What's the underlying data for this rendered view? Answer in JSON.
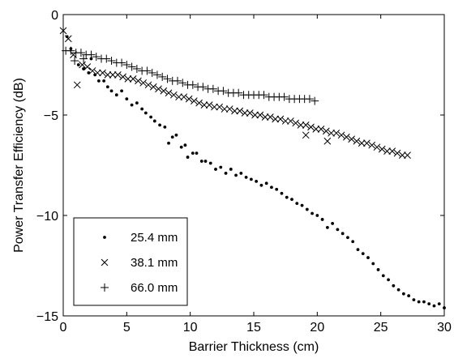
{
  "chart_data": {
    "type": "scatter",
    "title": "",
    "xlabel": "Barrier Thickness (cm)",
    "ylabel": "Power Transfer Efficiency (dB)",
    "xlim": [
      0,
      30
    ],
    "ylim": [
      -15,
      0
    ],
    "xticks": [
      0,
      5,
      10,
      15,
      20,
      25,
      30
    ],
    "yticks": [
      0,
      -5,
      -10,
      -15
    ],
    "grid": false,
    "legend_position": "bottom-left",
    "series": [
      {
        "name": "25.4 mm",
        "marker": "dot",
        "color": "#000000",
        "points": [
          [
            0.3,
            -1.1
          ],
          [
            0.6,
            -1.7
          ],
          [
            1.2,
            -2.5
          ],
          [
            1.6,
            -2.7
          ],
          [
            2.0,
            -2.9
          ],
          [
            2.2,
            -2.2
          ],
          [
            2.5,
            -3.0
          ],
          [
            2.8,
            -3.3
          ],
          [
            3.2,
            -3.3
          ],
          [
            3.5,
            -3.6
          ],
          [
            3.8,
            -3.8
          ],
          [
            4.2,
            -4.0
          ],
          [
            4.6,
            -3.8
          ],
          [
            5.0,
            -4.2
          ],
          [
            5.4,
            -4.5
          ],
          [
            5.8,
            -4.4
          ],
          [
            6.2,
            -4.7
          ],
          [
            6.5,
            -4.9
          ],
          [
            6.9,
            -5.1
          ],
          [
            7.2,
            -5.3
          ],
          [
            7.6,
            -5.5
          ],
          [
            8.0,
            -5.6
          ],
          [
            8.3,
            -6.4
          ],
          [
            8.6,
            -6.1
          ],
          [
            8.9,
            -6.0
          ],
          [
            9.3,
            -6.6
          ],
          [
            9.6,
            -6.5
          ],
          [
            9.8,
            -7.1
          ],
          [
            10.2,
            -6.9
          ],
          [
            10.5,
            -6.9
          ],
          [
            10.9,
            -7.3
          ],
          [
            11.2,
            -7.3
          ],
          [
            11.6,
            -7.4
          ],
          [
            12.0,
            -7.7
          ],
          [
            12.4,
            -7.6
          ],
          [
            12.8,
            -7.9
          ],
          [
            13.2,
            -7.7
          ],
          [
            13.6,
            -8.0
          ],
          [
            14.0,
            -7.9
          ],
          [
            14.4,
            -8.1
          ],
          [
            14.8,
            -8.2
          ],
          [
            15.2,
            -8.3
          ],
          [
            15.6,
            -8.5
          ],
          [
            16.0,
            -8.4
          ],
          [
            16.4,
            -8.6
          ],
          [
            16.8,
            -8.7
          ],
          [
            17.2,
            -8.9
          ],
          [
            17.6,
            -9.1
          ],
          [
            18.0,
            -9.2
          ],
          [
            18.4,
            -9.4
          ],
          [
            18.8,
            -9.5
          ],
          [
            19.2,
            -9.7
          ],
          [
            19.6,
            -9.9
          ],
          [
            20.0,
            -10.0
          ],
          [
            20.4,
            -10.2
          ],
          [
            20.8,
            -10.6
          ],
          [
            21.2,
            -10.4
          ],
          [
            21.6,
            -10.7
          ],
          [
            22.0,
            -10.9
          ],
          [
            22.4,
            -11.1
          ],
          [
            22.8,
            -11.3
          ],
          [
            23.2,
            -11.7
          ],
          [
            23.6,
            -11.9
          ],
          [
            24.0,
            -12.1
          ],
          [
            24.4,
            -12.4
          ],
          [
            24.8,
            -12.7
          ],
          [
            25.2,
            -13.0
          ],
          [
            25.6,
            -13.2
          ],
          [
            26.0,
            -13.5
          ],
          [
            26.4,
            -13.7
          ],
          [
            26.8,
            -13.9
          ],
          [
            27.2,
            -14.0
          ],
          [
            27.6,
            -14.2
          ],
          [
            28.0,
            -14.3
          ],
          [
            28.4,
            -14.3
          ],
          [
            28.8,
            -14.4
          ],
          [
            29.2,
            -14.5
          ],
          [
            29.6,
            -14.4
          ],
          [
            30.0,
            -14.6
          ]
        ]
      },
      {
        "name": "38.1 mm",
        "marker": "x",
        "color": "#000000",
        "points": [
          [
            0.0,
            -0.8
          ],
          [
            0.4,
            -1.2
          ],
          [
            0.8,
            -2.0
          ],
          [
            1.1,
            -3.5
          ],
          [
            1.5,
            -2.5
          ],
          [
            1.9,
            -2.6
          ],
          [
            2.3,
            -2.8
          ],
          [
            2.7,
            -2.9
          ],
          [
            3.1,
            -2.9
          ],
          [
            3.5,
            -3.0
          ],
          [
            3.9,
            -3.0
          ],
          [
            4.3,
            -3.0
          ],
          [
            4.7,
            -3.1
          ],
          [
            5.1,
            -3.2
          ],
          [
            5.5,
            -3.2
          ],
          [
            5.9,
            -3.3
          ],
          [
            6.3,
            -3.4
          ],
          [
            6.7,
            -3.5
          ],
          [
            7.1,
            -3.6
          ],
          [
            7.5,
            -3.7
          ],
          [
            7.9,
            -3.8
          ],
          [
            8.3,
            -3.9
          ],
          [
            8.7,
            -4.0
          ],
          [
            9.1,
            -4.1
          ],
          [
            9.5,
            -4.1
          ],
          [
            9.9,
            -4.2
          ],
          [
            10.3,
            -4.3
          ],
          [
            10.7,
            -4.4
          ],
          [
            11.1,
            -4.5
          ],
          [
            11.5,
            -4.5
          ],
          [
            11.9,
            -4.6
          ],
          [
            12.3,
            -4.6
          ],
          [
            12.7,
            -4.7
          ],
          [
            13.1,
            -4.7
          ],
          [
            13.5,
            -4.8
          ],
          [
            13.9,
            -4.8
          ],
          [
            14.3,
            -4.9
          ],
          [
            14.7,
            -4.9
          ],
          [
            15.1,
            -5.0
          ],
          [
            15.5,
            -5.0
          ],
          [
            15.9,
            -5.1
          ],
          [
            16.3,
            -5.1
          ],
          [
            16.7,
            -5.2
          ],
          [
            17.1,
            -5.2
          ],
          [
            17.5,
            -5.3
          ],
          [
            17.9,
            -5.3
          ],
          [
            18.3,
            -5.4
          ],
          [
            18.7,
            -5.5
          ],
          [
            19.1,
            -5.5
          ],
          [
            19.5,
            -5.6
          ],
          [
            19.9,
            -5.7
          ],
          [
            20.3,
            -5.7
          ],
          [
            20.7,
            -5.8
          ],
          [
            21.1,
            -5.9
          ],
          [
            21.5,
            -5.9
          ],
          [
            21.9,
            -6.0
          ],
          [
            22.3,
            -6.1
          ],
          [
            22.7,
            -6.2
          ],
          [
            23.1,
            -6.3
          ],
          [
            23.5,
            -6.4
          ],
          [
            23.9,
            -6.4
          ],
          [
            24.3,
            -6.5
          ],
          [
            24.7,
            -6.6
          ],
          [
            25.1,
            -6.7
          ],
          [
            25.5,
            -6.8
          ],
          [
            25.9,
            -6.8
          ],
          [
            26.3,
            -6.9
          ],
          [
            26.7,
            -7.0
          ],
          [
            27.1,
            -7.0
          ],
          [
            19.1,
            -6.0
          ],
          [
            20.8,
            -6.3
          ]
        ]
      },
      {
        "name": "66.0 mm",
        "marker": "plus",
        "color": "#000000",
        "points": [
          [
            0.2,
            -1.8
          ],
          [
            0.6,
            -1.8
          ],
          [
            1.0,
            -1.9
          ],
          [
            1.4,
            -1.9
          ],
          [
            1.8,
            -2.0
          ],
          [
            2.2,
            -2.0
          ],
          [
            2.6,
            -2.1
          ],
          [
            3.0,
            -2.2
          ],
          [
            3.4,
            -2.2
          ],
          [
            3.8,
            -2.3
          ],
          [
            4.2,
            -2.4
          ],
          [
            4.6,
            -2.4
          ],
          [
            5.0,
            -2.5
          ],
          [
            5.4,
            -2.6
          ],
          [
            5.8,
            -2.7
          ],
          [
            6.2,
            -2.8
          ],
          [
            6.6,
            -2.8
          ],
          [
            7.0,
            -2.9
          ],
          [
            7.4,
            -3.0
          ],
          [
            7.8,
            -3.1
          ],
          [
            8.2,
            -3.2
          ],
          [
            8.6,
            -3.3
          ],
          [
            9.0,
            -3.3
          ],
          [
            9.4,
            -3.4
          ],
          [
            9.8,
            -3.5
          ],
          [
            10.2,
            -3.5
          ],
          [
            10.6,
            -3.6
          ],
          [
            11.0,
            -3.6
          ],
          [
            11.4,
            -3.7
          ],
          [
            11.8,
            -3.7
          ],
          [
            12.2,
            -3.8
          ],
          [
            12.6,
            -3.8
          ],
          [
            13.0,
            -3.9
          ],
          [
            13.4,
            -3.9
          ],
          [
            13.8,
            -3.9
          ],
          [
            14.2,
            -4.0
          ],
          [
            14.6,
            -4.0
          ],
          [
            15.0,
            -4.0
          ],
          [
            15.4,
            -4.0
          ],
          [
            15.8,
            -4.0
          ],
          [
            16.2,
            -4.1
          ],
          [
            16.6,
            -4.1
          ],
          [
            17.0,
            -4.1
          ],
          [
            17.4,
            -4.1
          ],
          [
            17.8,
            -4.2
          ],
          [
            18.2,
            -4.2
          ],
          [
            18.6,
            -4.2
          ],
          [
            19.0,
            -4.2
          ],
          [
            19.4,
            -4.2
          ],
          [
            19.8,
            -4.3
          ],
          [
            0.9,
            -2.3
          ],
          [
            1.6,
            -2.2
          ]
        ]
      }
    ]
  }
}
